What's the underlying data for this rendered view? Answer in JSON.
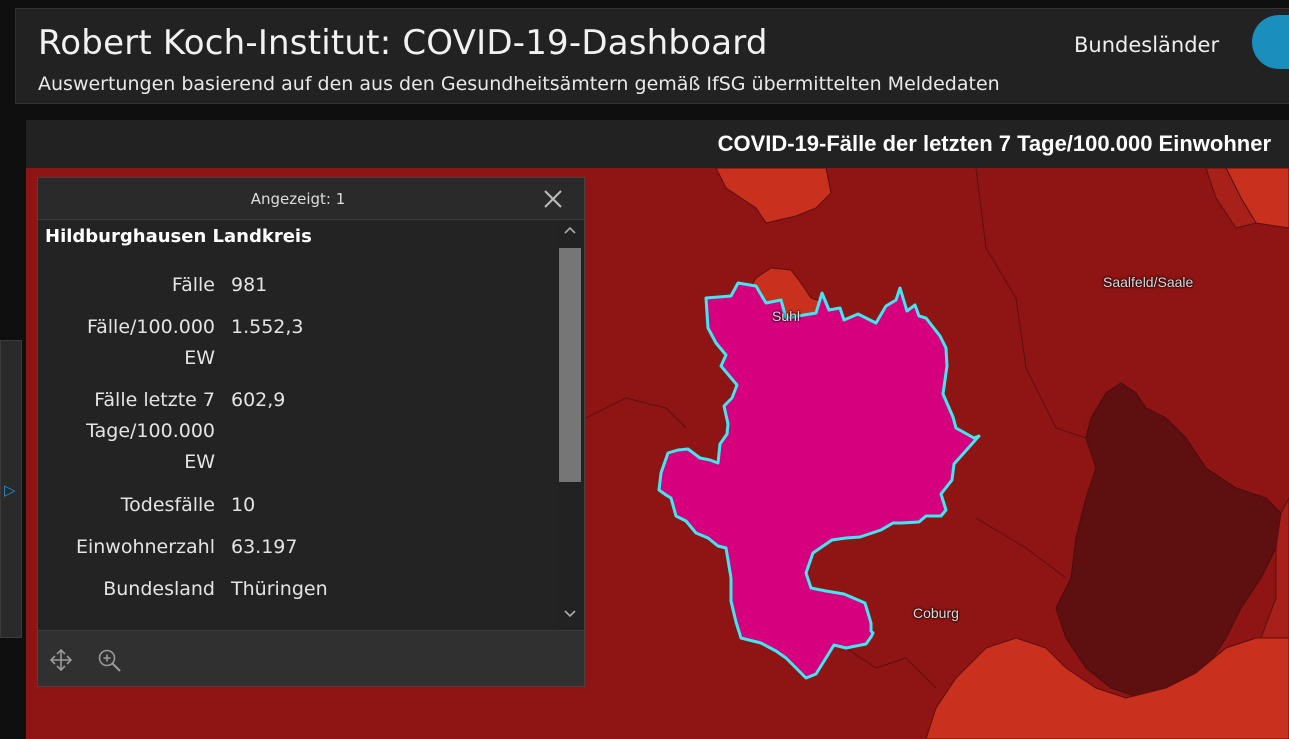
{
  "header": {
    "title": "Robert Koch-Institut: COVID-19-Dashboard",
    "subtitle": "Auswertungen basierend auf den aus den Gesundheitsämtern gemäß IfSG übermittelten Meldedaten",
    "tab_label": "Bundesländer"
  },
  "map": {
    "title": "COVID-19-Fälle der letzten 7 Tage/100.000 Einwohner",
    "labels": {
      "suhl": "Suhl",
      "saalfeld": "Saalfeld/Saale",
      "coburg": "Coburg"
    },
    "colors": {
      "base": "#8f1414",
      "lighter": "#c9301e",
      "darker": "#5e1010",
      "selected_fill": "#d6007f",
      "selected_outline": "#3fe7f0"
    }
  },
  "popup": {
    "count_label": "Angezeigt: 1",
    "feature_name": "Hildburghausen Landkreis",
    "attributes": [
      {
        "key_lines": [
          "Fälle"
        ],
        "value": "981"
      },
      {
        "key_lines": [
          "Fälle/100.000",
          "EW"
        ],
        "value": "1.552,3"
      },
      {
        "key_lines": [
          "Fälle letzte 7",
          "Tage/100.000",
          "EW"
        ],
        "value": "602,9"
      },
      {
        "key_lines": [
          "Todesfälle"
        ],
        "value": "10"
      },
      {
        "key_lines": [
          "Einwohnerzahl"
        ],
        "value": "63.197"
      },
      {
        "key_lines": [
          "Bundesland"
        ],
        "value": "Thüringen"
      }
    ],
    "icons": {
      "close": "close-icon",
      "pan": "pan-icon",
      "zoom": "zoom-to-icon"
    }
  }
}
